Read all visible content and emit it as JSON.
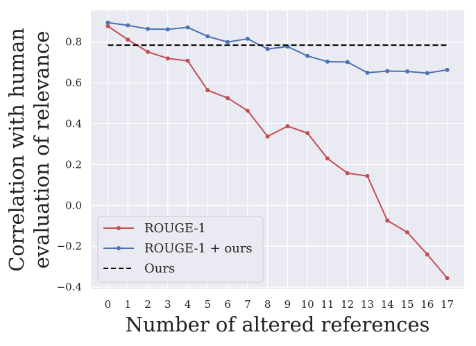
{
  "chart_data": {
    "type": "line",
    "title": "",
    "xlabel": "Number of altered references",
    "ylabel": [
      "Correlation with human",
      "evaluation of relevance"
    ],
    "x": [
      0,
      1,
      2,
      3,
      4,
      5,
      6,
      7,
      8,
      9,
      10,
      11,
      12,
      13,
      14,
      15,
      16,
      17
    ],
    "x_tick_labels": [
      "0",
      "1",
      "2",
      "3",
      "4",
      "5",
      "6",
      "7",
      "8",
      "9",
      "10",
      "11",
      "12",
      "13",
      "14",
      "15",
      "16",
      "17"
    ],
    "xlim": [
      -0.85,
      17.85
    ],
    "ylim": [
      -0.41,
      0.955
    ],
    "y_ticks": [
      -0.4,
      -0.2,
      0.0,
      0.2,
      0.4,
      0.6,
      0.8
    ],
    "y_tick_labels": [
      "−0.4",
      "−0.2",
      "0.0",
      "0.2",
      "0.4",
      "0.6",
      "0.8"
    ],
    "grid": true,
    "legend_position": "bottom-left",
    "series": [
      {
        "name": "ROUGE-1",
        "color": "#c44e52",
        "style": "solid-markers",
        "values": [
          0.878,
          0.812,
          0.752,
          0.72,
          0.708,
          0.564,
          0.526,
          0.464,
          0.338,
          0.388,
          0.354,
          0.23,
          0.158,
          0.144,
          -0.074,
          -0.132,
          -0.24,
          -0.356
        ]
      },
      {
        "name": "ROUGE-1 + ours",
        "color": "#4c72b0",
        "style": "solid-markers",
        "values": [
          0.895,
          0.882,
          0.864,
          0.862,
          0.872,
          0.828,
          0.8,
          0.816,
          0.766,
          0.778,
          0.732,
          0.704,
          0.702,
          0.65,
          0.658,
          0.656,
          0.648,
          0.664
        ]
      },
      {
        "name": "Ours",
        "color": "#000000",
        "style": "dashed",
        "values": [
          0.785,
          0.785,
          0.785,
          0.785,
          0.785,
          0.785,
          0.785,
          0.785,
          0.785,
          0.785,
          0.785,
          0.785,
          0.785,
          0.785,
          0.785,
          0.785,
          0.785,
          0.785
        ]
      }
    ]
  }
}
